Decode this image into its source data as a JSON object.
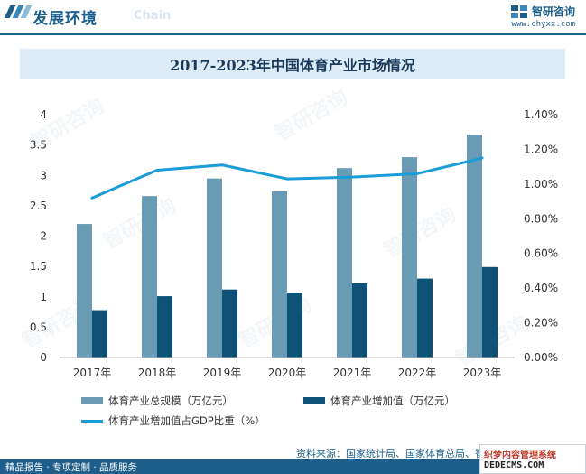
{
  "header": {
    "title": "发展环境",
    "subtitle_en": "Chain",
    "brand_name": "智研咨询",
    "brand_url": "www.chyxx.com"
  },
  "banner": {
    "title": "2017-2023年中国体育产业市场情况"
  },
  "chart_data": {
    "type": "bar",
    "categories": [
      "2017年",
      "2018年",
      "2019年",
      "2020年",
      "2021年",
      "2022年",
      "2023年"
    ],
    "series": [
      {
        "name": "体育产业总规模（万亿元）",
        "type": "bar",
        "axis": "left",
        "values": [
          2.2,
          2.66,
          2.95,
          2.74,
          3.12,
          3.3,
          3.67
        ],
        "color": "#6a9bb5"
      },
      {
        "name": "体育产业增加值（万亿元）",
        "type": "bar",
        "axis": "left",
        "values": [
          0.78,
          1.01,
          1.12,
          1.07,
          1.22,
          1.3,
          1.49
        ],
        "color": "#0e5278"
      },
      {
        "name": "体育产业增加值占GDP比重（%）",
        "type": "line",
        "axis": "right",
        "values": [
          0.92,
          1.08,
          1.11,
          1.03,
          1.04,
          1.06,
          1.15
        ],
        "color": "#1a9cd8"
      }
    ],
    "y_left": {
      "ticks": [
        "0",
        "0.5",
        "1",
        "1.5",
        "2",
        "2.5",
        "3",
        "3.5",
        "4"
      ],
      "ylim": [
        0,
        4
      ]
    },
    "y_right": {
      "ticks": [
        "0.00%",
        "0.20%",
        "0.40%",
        "0.60%",
        "0.80%",
        "1.00%",
        "1.20%",
        "1.40%"
      ],
      "ylim": [
        0,
        1.4
      ]
    },
    "grid": false,
    "legend_position": "bottom"
  },
  "legend": [
    {
      "label": "体育产业总规模（万亿元）",
      "color": "#6a9bb5"
    },
    {
      "label": "体育产业增加值（万亿元）",
      "color": "#0e5278"
    },
    {
      "label": "体育产业增加值占GDP比重（%）",
      "color": "#1a9cd8"
    }
  ],
  "source": "资料来源：国家统计局、国家体育总局、智研咨询整理",
  "footer": {
    "text": "精品报告 · 专项定制 · 品质服务",
    "badge_top": "织梦内容管理系统",
    "badge_bottom": "DEDECMS.COM"
  },
  "watermark": "智研咨询"
}
